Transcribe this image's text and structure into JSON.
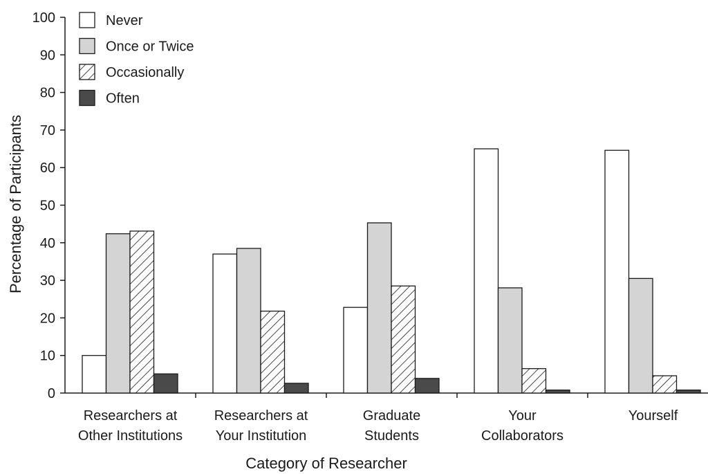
{
  "chart_data": {
    "type": "bar",
    "title": "",
    "xlabel": "Category of Researcher",
    "ylabel": "Percentage of Participants",
    "ylim": [
      0,
      100
    ],
    "yticks": [
      0,
      10,
      20,
      30,
      40,
      50,
      60,
      70,
      80,
      90,
      100
    ],
    "grid": false,
    "legend_position": "top-left",
    "categories": [
      [
        "Researchers at",
        "Other Institutions"
      ],
      [
        "Researchers at",
        "Your Institution"
      ],
      [
        "Graduate",
        "Students"
      ],
      [
        "Your",
        "Collaborators"
      ],
      [
        "Yourself"
      ]
    ],
    "series": [
      {
        "name": "Never",
        "fill": "#ffffff",
        "pattern": "none",
        "values": [
          10,
          37,
          22.8,
          65,
          64.6
        ]
      },
      {
        "name": "Once or Twice",
        "fill": "#d4d4d4",
        "pattern": "none",
        "values": [
          42.4,
          38.5,
          45.3,
          28,
          30.5
        ]
      },
      {
        "name": "Occasionally",
        "fill": "#ffffff",
        "pattern": "diagonal-hatch",
        "values": [
          43.1,
          21.8,
          28.5,
          6.5,
          4.6
        ]
      },
      {
        "name": "Often",
        "fill": "#4a4a4a",
        "pattern": "none",
        "values": [
          5.1,
          2.6,
          3.9,
          0.8,
          0.8
        ]
      }
    ]
  }
}
